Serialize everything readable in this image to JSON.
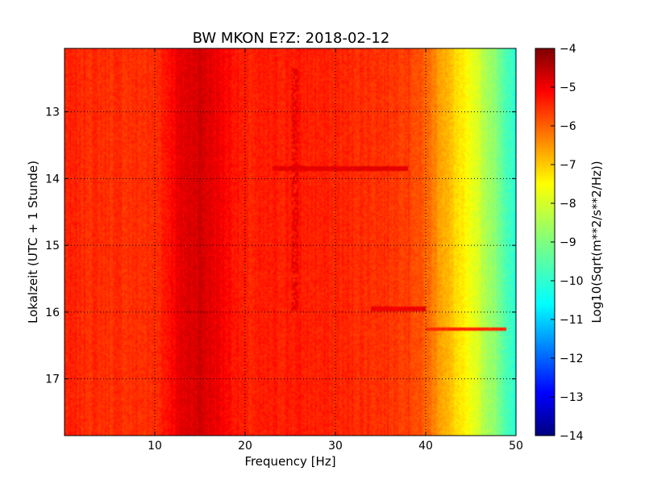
{
  "chart_data": {
    "type": "heatmap",
    "title": "BW MKON E?Z: 2018-02-12",
    "xlabel": "Frequency [Hz]",
    "ylabel": "Lokalzeit (UTC + 1 Stunde)",
    "colorbar_label": "Log10(Sqrt(m**2/s**2/Hz))",
    "xlim": [
      0,
      50
    ],
    "ylim": [
      12.05,
      17.85
    ],
    "y_inverted": true,
    "x_ticks": [
      10,
      20,
      30,
      40,
      50
    ],
    "x_tick_labels": [
      "10",
      "20",
      "30",
      "40",
      "50"
    ],
    "y_ticks": [
      13,
      14,
      15,
      16,
      17
    ],
    "y_tick_labels": [
      "13",
      "14",
      "15",
      "16",
      "17"
    ],
    "colorbar_range": [
      -14,
      -4
    ],
    "colorbar_ticks": [
      -4,
      -5,
      -6,
      -7,
      -8,
      -9,
      -10,
      -11,
      -12,
      -13,
      -14
    ],
    "colorbar_tick_labels": [
      "−4",
      "−5",
      "−6",
      "−7",
      "−8",
      "−9",
      "−10",
      "−11",
      "−12",
      "−13",
      "−14"
    ],
    "colormap": "jet",
    "grid": true,
    "grid_style": "dotted",
    "spectrum_profile": {
      "frequency_hz": [
        0,
        5,
        10,
        13,
        15,
        17,
        20,
        25,
        30,
        35,
        38,
        40,
        42,
        44,
        46,
        48,
        50
      ],
      "log10_psd": [
        -5.6,
        -5.7,
        -5.7,
        -5.0,
        -4.8,
        -5.1,
        -5.6,
        -5.5,
        -5.6,
        -5.7,
        -5.8,
        -6.2,
        -6.9,
        -7.6,
        -8.3,
        -9.0,
        -10.0
      ]
    },
    "annotations": [
      {
        "label": "strong band",
        "freq_range": [
          23,
          38
        ],
        "time": 13.85,
        "log10_psd": -5.0
      },
      {
        "label": "horizontal streak",
        "freq_range": [
          40,
          49
        ],
        "time": 16.25,
        "log10_psd": -5.6
      },
      {
        "label": "horizontal streak",
        "freq_range": [
          34,
          40
        ],
        "time": 15.95,
        "log10_psd": -5.1
      },
      {
        "label": "vertical feature",
        "freq": 25.5,
        "time_range": [
          12.35,
          16.0
        ],
        "log10_psd": -5.0
      }
    ]
  }
}
